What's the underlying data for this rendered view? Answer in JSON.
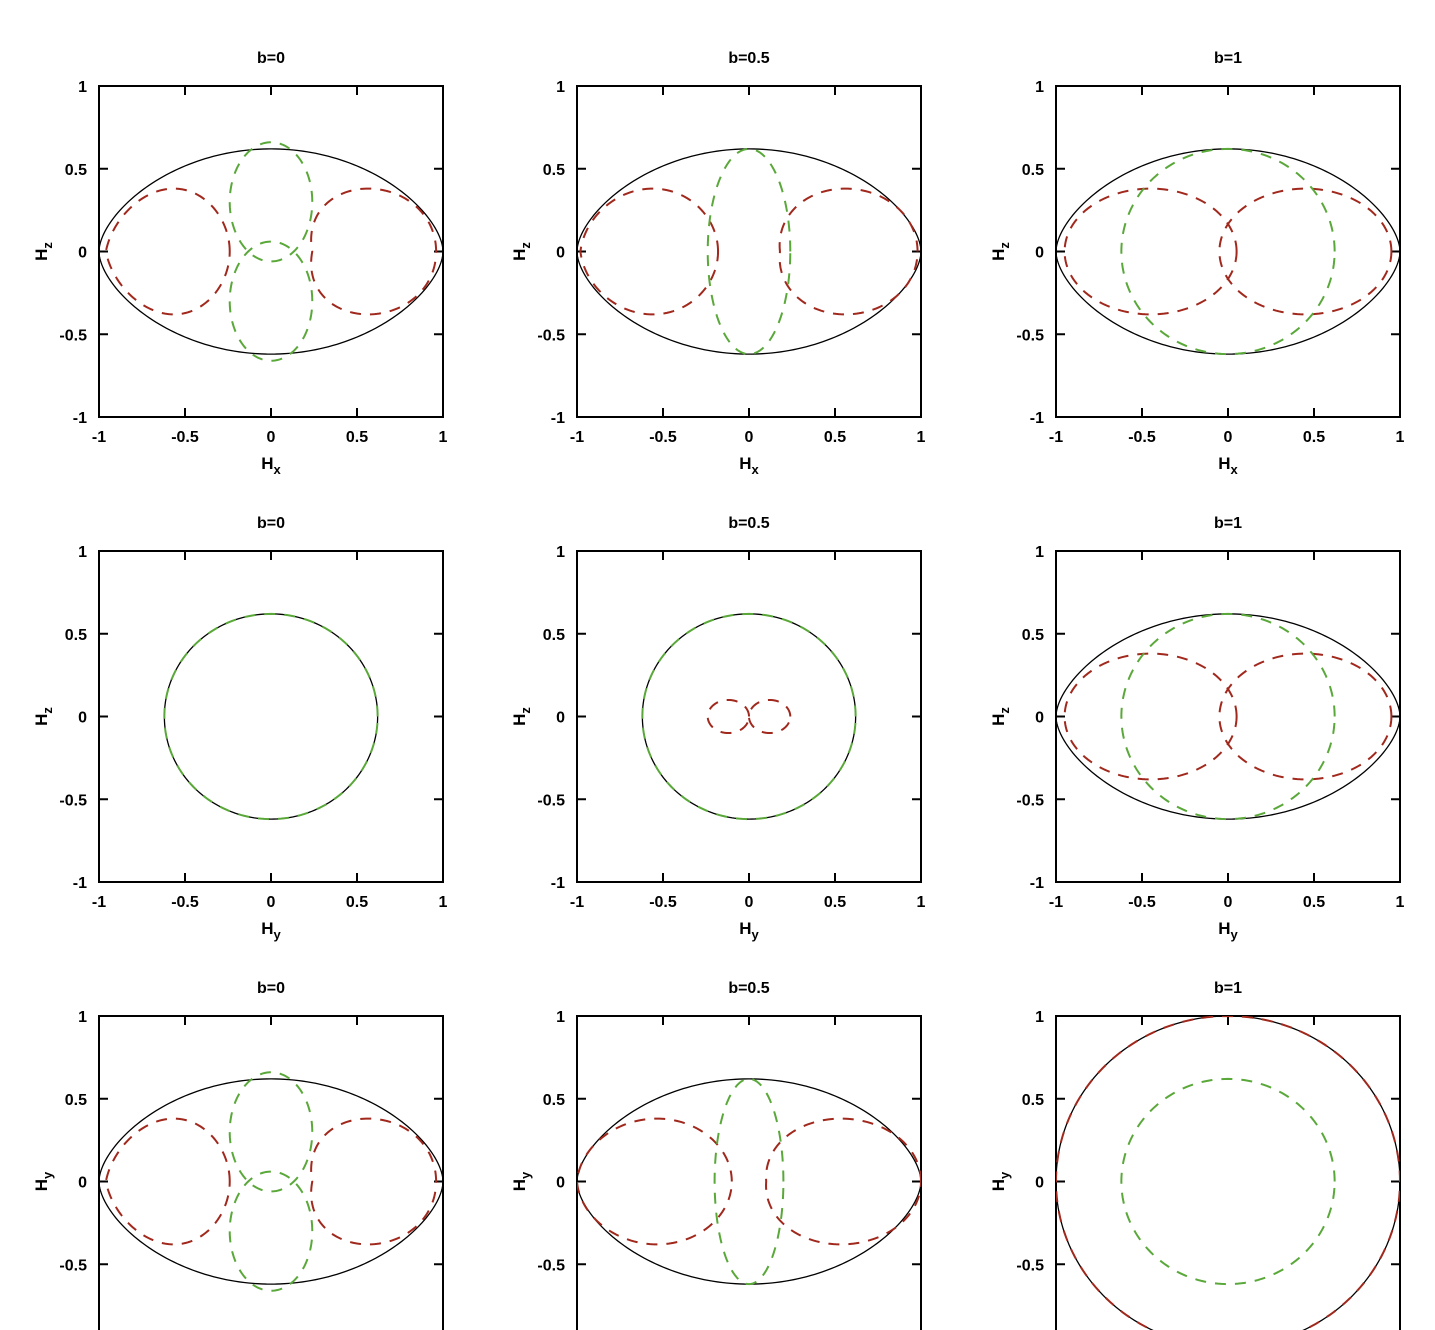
{
  "colors": {
    "envelope": "#000000",
    "series_red": "#a0281c",
    "series_green": "#5aa83a",
    "axis": "#000000"
  },
  "chart_data": [
    {
      "type": "line",
      "title": "b=0",
      "xlabel": "H",
      "xlabel_sub": "x",
      "ylabel": "H",
      "ylabel_sub": "z",
      "xlim": [
        -1,
        1
      ],
      "ylim": [
        -1,
        1
      ],
      "xticks": [
        "-1",
        "-0.5",
        "0",
        "0.5",
        "1"
      ],
      "yticks": [
        "1",
        "0.5",
        "0",
        "-0.5",
        "-1"
      ],
      "grid": false,
      "series": [
        {
          "kind": "envelope",
          "style": "solid",
          "color": "black",
          "shape": "bulge",
          "width": 1.0,
          "height": 0.62
        },
        {
          "kind": "circles",
          "style": "dashed",
          "color": "red",
          "rx": 0.36,
          "ry": 0.38,
          "centers": [
            [
              -0.6,
              0
            ],
            [
              0.6,
              0
            ]
          ],
          "tilt": 0.35
        },
        {
          "kind": "circles",
          "style": "dashed",
          "color": "green",
          "rx": 0.24,
          "ry": 0.36,
          "centers": [
            [
              0,
              0.3
            ],
            [
              0,
              -0.3
            ]
          ],
          "tilt": 0.2
        }
      ]
    },
    {
      "type": "line",
      "title": "b=0.5",
      "xlabel": "H",
      "xlabel_sub": "x",
      "ylabel": "H",
      "ylabel_sub": "z",
      "xlim": [
        -1,
        1
      ],
      "ylim": [
        -1,
        1
      ],
      "xticks": [
        "-1",
        "-0.5",
        "0",
        "0.5",
        "1"
      ],
      "yticks": [
        "1",
        "0.5",
        "0",
        "-0.5",
        "-1"
      ],
      "grid": false,
      "series": [
        {
          "kind": "envelope",
          "style": "solid",
          "color": "black",
          "shape": "bulge",
          "width": 1.0,
          "height": 0.62
        },
        {
          "kind": "circles",
          "style": "dashed",
          "color": "red",
          "rx": 0.4,
          "ry": 0.38,
          "centers": [
            [
              -0.58,
              0
            ],
            [
              0.58,
              0
            ]
          ],
          "tilt": 0.2
        },
        {
          "kind": "circles",
          "style": "dashed",
          "color": "green",
          "rx": 0.24,
          "ry": 0.62,
          "centers": [
            [
              0,
              0
            ]
          ],
          "tilt": 0
        }
      ]
    },
    {
      "type": "line",
      "title": "b=1",
      "xlabel": "H",
      "xlabel_sub": "x",
      "ylabel": "H",
      "ylabel_sub": "z",
      "xlim": [
        -1,
        1
      ],
      "ylim": [
        -1,
        1
      ],
      "xticks": [
        "-1",
        "-0.5",
        "0",
        "0.5",
        "1"
      ],
      "yticks": [
        "1",
        "0.5",
        "0",
        "-0.5",
        "-1"
      ],
      "grid": false,
      "series": [
        {
          "kind": "envelope",
          "style": "solid",
          "color": "black",
          "shape": "bulge",
          "width": 1.0,
          "height": 0.62
        },
        {
          "kind": "circles",
          "style": "dashed",
          "color": "red",
          "rx": 0.5,
          "ry": 0.38,
          "centers": [
            [
              -0.45,
              0
            ],
            [
              0.45,
              0
            ]
          ],
          "tilt": 0
        },
        {
          "kind": "circles",
          "style": "dashed",
          "color": "green",
          "rx": 0.62,
          "ry": 0.62,
          "centers": [
            [
              0,
              0
            ]
          ],
          "tilt": 0
        }
      ]
    },
    {
      "type": "line",
      "title": "b=0",
      "xlabel": "H",
      "xlabel_sub": "y",
      "ylabel": "H",
      "ylabel_sub": "z",
      "xlim": [
        -1,
        1
      ],
      "ylim": [
        -1,
        1
      ],
      "xticks": [
        "-1",
        "-0.5",
        "0",
        "0.5",
        "1"
      ],
      "yticks": [
        "1",
        "0.5",
        "0",
        "-0.5",
        "-1"
      ],
      "grid": false,
      "series": [
        {
          "kind": "envelope",
          "style": "solid",
          "color": "black",
          "shape": "circle",
          "width": 0.62,
          "height": 0.62
        },
        {
          "kind": "circles",
          "style": "dashed",
          "color": "green",
          "rx": 0.62,
          "ry": 0.62,
          "centers": [
            [
              0,
              0
            ]
          ],
          "tilt": 0
        }
      ]
    },
    {
      "type": "line",
      "title": "b=0.5",
      "xlabel": "H",
      "xlabel_sub": "y",
      "ylabel": "H",
      "ylabel_sub": "z",
      "xlim": [
        -1,
        1
      ],
      "ylim": [
        -1,
        1
      ],
      "xticks": [
        "-1",
        "-0.5",
        "0",
        "0.5",
        "1"
      ],
      "yticks": [
        "1",
        "0.5",
        "0",
        "-0.5",
        "-1"
      ],
      "grid": false,
      "series": [
        {
          "kind": "envelope",
          "style": "solid",
          "color": "black",
          "shape": "circle",
          "width": 0.62,
          "height": 0.62
        },
        {
          "kind": "circles",
          "style": "dashed",
          "color": "green",
          "rx": 0.62,
          "ry": 0.62,
          "centers": [
            [
              0,
              0
            ]
          ],
          "tilt": 0
        },
        {
          "kind": "circles",
          "style": "dashed",
          "color": "red",
          "rx": 0.12,
          "ry": 0.1,
          "centers": [
            [
              -0.12,
              0
            ],
            [
              0.12,
              0
            ]
          ],
          "tilt": 0
        }
      ]
    },
    {
      "type": "line",
      "title": "b=1",
      "xlabel": "H",
      "xlabel_sub": "y",
      "ylabel": "H",
      "ylabel_sub": "z",
      "xlim": [
        -1,
        1
      ],
      "ylim": [
        -1,
        1
      ],
      "xticks": [
        "-1",
        "-0.5",
        "0",
        "0.5",
        "1"
      ],
      "yticks": [
        "1",
        "0.5",
        "0",
        "-0.5",
        "-1"
      ],
      "grid": false,
      "series": [
        {
          "kind": "envelope",
          "style": "solid",
          "color": "black",
          "shape": "bulge",
          "width": 1.0,
          "height": 0.62
        },
        {
          "kind": "circles",
          "style": "dashed",
          "color": "red",
          "rx": 0.5,
          "ry": 0.38,
          "centers": [
            [
              -0.45,
              0
            ],
            [
              0.45,
              0
            ]
          ],
          "tilt": 0
        },
        {
          "kind": "circles",
          "style": "dashed",
          "color": "green",
          "rx": 0.62,
          "ry": 0.62,
          "centers": [
            [
              0,
              0
            ]
          ],
          "tilt": 0
        }
      ]
    },
    {
      "type": "line",
      "title": "b=0",
      "xlabel": "",
      "xlabel_sub": "",
      "ylabel": "H",
      "ylabel_sub": "y",
      "xlim": [
        -1,
        1
      ],
      "ylim": [
        -1,
        1
      ],
      "xticks": [],
      "yticks": [
        "1",
        "0.5",
        "0",
        "-0.5"
      ],
      "grid": false,
      "series": [
        {
          "kind": "envelope",
          "style": "solid",
          "color": "black",
          "shape": "bulge",
          "width": 1.0,
          "height": 0.62
        },
        {
          "kind": "circles",
          "style": "dashed",
          "color": "red",
          "rx": 0.36,
          "ry": 0.38,
          "centers": [
            [
              -0.6,
              0
            ],
            [
              0.6,
              0
            ]
          ],
          "tilt": 0.35
        },
        {
          "kind": "circles",
          "style": "dashed",
          "color": "green",
          "rx": 0.24,
          "ry": 0.36,
          "centers": [
            [
              0,
              0.3
            ],
            [
              0,
              -0.3
            ]
          ],
          "tilt": 0.2
        }
      ]
    },
    {
      "type": "line",
      "title": "b=0.5",
      "xlabel": "",
      "xlabel_sub": "",
      "ylabel": "H",
      "ylabel_sub": "y",
      "xlim": [
        -1,
        1
      ],
      "ylim": [
        -1,
        1
      ],
      "xticks": [],
      "yticks": [
        "1",
        "0.5",
        "0",
        "-0.5"
      ],
      "grid": false,
      "series": [
        {
          "kind": "envelope",
          "style": "solid",
          "color": "black",
          "shape": "bulge",
          "width": 1.0,
          "height": 0.62
        },
        {
          "kind": "circles",
          "style": "dashed",
          "color": "red",
          "rx": 0.45,
          "ry": 0.38,
          "centers": [
            [
              -0.55,
              0
            ],
            [
              0.55,
              0
            ]
          ],
          "tilt": 0.15
        },
        {
          "kind": "circles",
          "style": "dashed",
          "color": "green",
          "rx": 0.2,
          "ry": 0.62,
          "centers": [
            [
              0,
              0
            ]
          ],
          "tilt": 0
        }
      ]
    },
    {
      "type": "line",
      "title": "b=1",
      "xlabel": "",
      "xlabel_sub": "",
      "ylabel": "H",
      "ylabel_sub": "y",
      "xlim": [
        -1,
        1
      ],
      "ylim": [
        -1,
        1
      ],
      "xticks": [],
      "yticks": [
        "1",
        "0.5",
        "0",
        "-0.5"
      ],
      "grid": false,
      "series": [
        {
          "kind": "envelope",
          "style": "solid",
          "color": "black",
          "shape": "circle",
          "width": 1.0,
          "height": 1.0
        },
        {
          "kind": "circles",
          "style": "dashed",
          "color": "red",
          "rx": 1.0,
          "ry": 1.0,
          "centers": [
            [
              0,
              0
            ]
          ],
          "tilt": 0
        },
        {
          "kind": "circles",
          "style": "dashed",
          "color": "green",
          "rx": 0.62,
          "ry": 0.62,
          "centers": [
            [
              0,
              0
            ]
          ],
          "tilt": 0
        }
      ]
    }
  ]
}
